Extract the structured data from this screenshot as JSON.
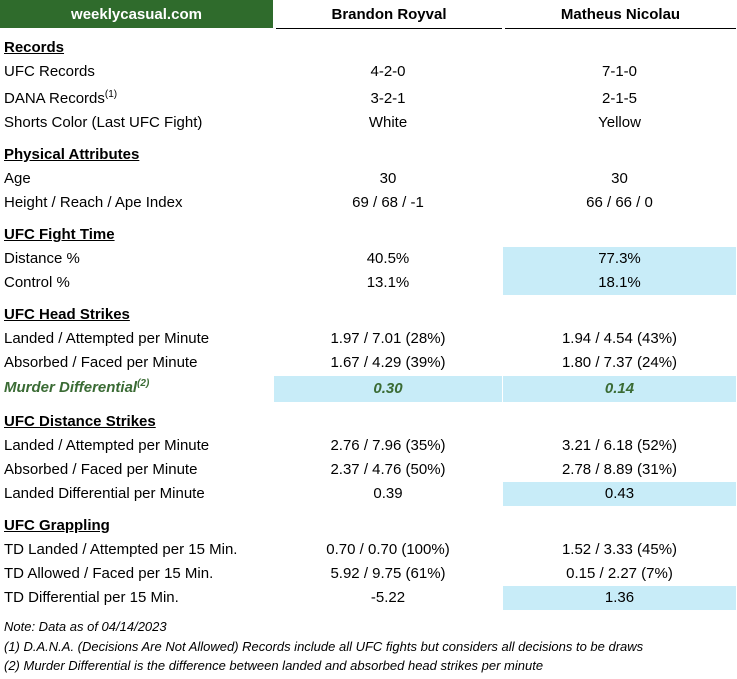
{
  "header": {
    "brand": "weeklycasual.com",
    "fighter1": "Brandon Royval",
    "fighter2": "Matheus Nicolau"
  },
  "rows": [
    {
      "type": "section",
      "label": "Records"
    },
    {
      "type": "data",
      "label": "UFC Records",
      "v1": "4-2-0",
      "v2": "7-1-0"
    },
    {
      "type": "data",
      "label": "DANA Records",
      "sup": "(1)",
      "v1": "3-2-1",
      "v2": "2-1-5"
    },
    {
      "type": "data",
      "label": "Shorts Color (Last UFC Fight)",
      "v1": "White",
      "v2": "Yellow"
    },
    {
      "type": "section",
      "label": "Physical Attributes"
    },
    {
      "type": "data",
      "label": "Age",
      "v1": "30",
      "v2": "30"
    },
    {
      "type": "data",
      "label": "Height / Reach / Ape Index",
      "v1": "69 / 68 / -1",
      "v2": "66 / 66 / 0"
    },
    {
      "type": "section",
      "label": "UFC Fight Time"
    },
    {
      "type": "data",
      "label": "Distance %",
      "v1": "40.5%",
      "v2": "77.3%",
      "hl2": true
    },
    {
      "type": "data",
      "label": "Control %",
      "v1": "13.1%",
      "v2": "18.1%",
      "hl2": true
    },
    {
      "type": "section",
      "label": "UFC Head Strikes"
    },
    {
      "type": "data",
      "label": "Landed / Attempted per Minute",
      "v1": "1.97 / 7.01 (28%)",
      "v2": "1.94 / 4.54 (43%)"
    },
    {
      "type": "data",
      "label": "Absorbed / Faced per Minute",
      "v1": "1.67 / 4.29 (39%)",
      "v2": "1.80 / 7.37 (24%)"
    },
    {
      "type": "murder",
      "label": "Murder Differential",
      "sup": "(2)",
      "v1": "0.30",
      "v2": "0.14",
      "hl1": true,
      "hl2": true
    },
    {
      "type": "section",
      "label": "UFC Distance Strikes"
    },
    {
      "type": "data",
      "label": "Landed / Attempted per Minute",
      "v1": "2.76 / 7.96 (35%)",
      "v2": "3.21 / 6.18 (52%)"
    },
    {
      "type": "data",
      "label": "Absorbed / Faced per Minute",
      "v1": "2.37 / 4.76 (50%)",
      "v2": "2.78 / 8.89 (31%)"
    },
    {
      "type": "data",
      "label": "Landed Differential per Minute",
      "v1": "0.39",
      "v2": "0.43",
      "hl2": true
    },
    {
      "type": "section",
      "label": "UFC Grappling"
    },
    {
      "type": "data",
      "label": "TD Landed / Attempted per 15 Min.",
      "v1": "0.70 / 0.70 (100%)",
      "v2": "1.52 / 3.33 (45%)"
    },
    {
      "type": "data",
      "label": "TD Allowed / Faced per 15 Min.",
      "v1": "5.92 / 9.75 (61%)",
      "v2": "0.15 / 2.27 (7%)"
    },
    {
      "type": "data",
      "label": "TD Differential per 15 Min.",
      "v1": "-5.22",
      "v2": "1.36",
      "hl2": true
    }
  ],
  "notes": [
    "Note: Data as of 04/14/2023",
    "(1) D.A.N.A. (Decisions Are Not Allowed) Records include all UFC fights but considers all decisions to be draws",
    "(2) Murder Differential is the difference between landed and absorbed head strikes per minute"
  ],
  "colors": {
    "brand_bg": "#2f6b2c",
    "highlight": "#c8ecf8",
    "murder_text": "#3a6b34"
  }
}
